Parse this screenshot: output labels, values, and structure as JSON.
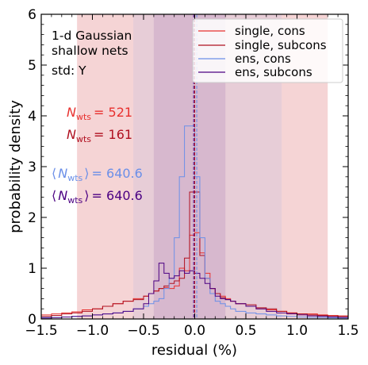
{
  "chart_data": {
    "type": "histogram",
    "xlabel": "residual (%)",
    "ylabel": "probability density",
    "xlim": [
      -1.5,
      1.5
    ],
    "ylim": [
      0,
      6
    ],
    "xticks": [
      -1.5,
      -1.0,
      -0.5,
      0.0,
      0.5,
      1.0,
      1.5
    ],
    "xtick_labels": [
      "−1.5",
      "−1.0",
      "−0.5",
      "0.0",
      "0.5",
      "1.0",
      "1.5"
    ],
    "yticks": [
      0,
      1,
      2,
      3,
      4,
      5,
      6
    ],
    "ytick_labels": [
      "0",
      "1",
      "2",
      "3",
      "4",
      "5",
      "6"
    ],
    "annotations": [
      "1-d Gaussian",
      "shallow nets",
      "std: Y"
    ],
    "legend_position": "top-right",
    "bin_edges": [
      -1.5,
      -1.4,
      -1.3,
      -1.2,
      -1.1,
      -1.0,
      -0.9,
      -0.8,
      -0.7,
      -0.6,
      -0.5,
      -0.45,
      -0.4,
      -0.35,
      -0.3,
      -0.25,
      -0.2,
      -0.15,
      -0.1,
      -0.05,
      0.0,
      0.05,
      0.1,
      0.15,
      0.2,
      0.25,
      0.3,
      0.35,
      0.4,
      0.5,
      0.6,
      0.7,
      0.8,
      0.9,
      1.0,
      1.1,
      1.2,
      1.3,
      1.4,
      1.5
    ],
    "series": [
      {
        "name": "single, cons",
        "color": "#e8302e",
        "nwts_label": "521",
        "band": [
          -1.15,
          1.3
        ],
        "center": 0.0,
        "values": [
          0.08,
          0.1,
          0.12,
          0.14,
          0.18,
          0.2,
          0.25,
          0.3,
          0.35,
          0.4,
          0.45,
          0.5,
          0.55,
          0.6,
          0.62,
          0.6,
          0.65,
          1.0,
          0.95,
          1.65,
          1.7,
          1.3,
          0.9,
          0.6,
          0.5,
          0.45,
          0.4,
          0.35,
          0.3,
          0.25,
          0.2,
          0.18,
          0.15,
          0.12,
          0.1,
          0.1,
          0.08,
          0.07,
          0.06
        ]
      },
      {
        "name": "single, subcons",
        "color": "#b01020",
        "nwts_label": "161",
        "band": [
          -1.15,
          1.3
        ],
        "center": 0.0,
        "values": [
          0.05,
          0.07,
          0.1,
          0.12,
          0.15,
          0.2,
          0.25,
          0.3,
          0.35,
          0.38,
          0.45,
          0.5,
          0.55,
          0.6,
          0.65,
          0.7,
          0.75,
          0.8,
          1.2,
          2.5,
          2.5,
          1.25,
          0.8,
          0.6,
          0.5,
          0.42,
          0.38,
          0.35,
          0.3,
          0.28,
          0.22,
          0.2,
          0.15,
          0.12,
          0.1,
          0.08,
          0.07,
          0.06,
          0.05
        ]
      },
      {
        "name": "ens, cons",
        "color": "#6b8fe8",
        "nwts_label": "640.6",
        "band": [
          -0.6,
          0.85
        ],
        "center": 0.02,
        "values": [
          0.03,
          0.03,
          0.04,
          0.05,
          0.06,
          0.08,
          0.1,
          0.12,
          0.15,
          0.2,
          0.25,
          0.3,
          0.35,
          0.4,
          0.6,
          0.8,
          1.6,
          2.8,
          3.8,
          3.8,
          2.8,
          1.6,
          0.8,
          0.5,
          0.35,
          0.3,
          0.25,
          0.2,
          0.15,
          0.12,
          0.1,
          0.08,
          0.06,
          0.05,
          0.04,
          0.03,
          0.03,
          0.02,
          0.02
        ]
      },
      {
        "name": "ens, subcons",
        "color": "#4b0082",
        "nwts_label": "640.6",
        "band": [
          -0.4,
          0.3
        ],
        "center": -0.01,
        "values": [
          0.02,
          0.03,
          0.04,
          0.05,
          0.06,
          0.08,
          0.1,
          0.12,
          0.15,
          0.2,
          0.3,
          0.5,
          0.75,
          1.1,
          0.9,
          0.8,
          0.85,
          0.95,
          0.9,
          0.95,
          0.9,
          0.8,
          0.7,
          0.6,
          0.45,
          0.4,
          0.38,
          0.35,
          0.3,
          0.25,
          0.2,
          0.15,
          0.12,
          0.1,
          0.08,
          0.06,
          0.05,
          0.04,
          0.03
        ]
      }
    ]
  },
  "labels": {
    "nwts_single_cons": "= 521",
    "nwts_single_subcons": "= 161",
    "nwts_ens_cons": "= 640.6",
    "nwts_ens_subcons": "= 640.6"
  }
}
